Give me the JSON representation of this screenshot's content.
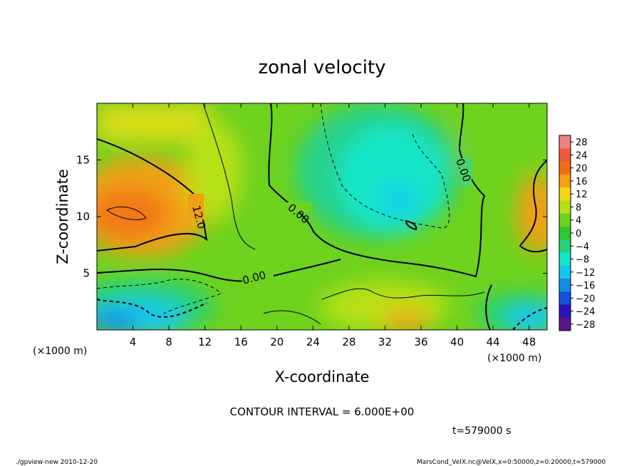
{
  "chart_data": {
    "type": "heatmap",
    "title": "zonal velocity",
    "xlabel": "X-coordinate",
    "ylabel": "Z-coordinate",
    "x_unit_label": "(×1000 m)",
    "z_unit_label": "(×1000 m)",
    "x_ticks": [
      4,
      8,
      12,
      16,
      20,
      24,
      28,
      32,
      36,
      40,
      44,
      48
    ],
    "y_ticks": [
      5,
      10,
      15
    ],
    "xlim": [
      0,
      50
    ],
    "ylim": [
      0,
      20
    ],
    "colorbar": {
      "levels": [
        28,
        24,
        20,
        16,
        12,
        8,
        4,
        0,
        -4,
        -8,
        -12,
        -16,
        -20,
        -24,
        -28
      ],
      "colors": [
        "#f08080",
        "#f05a3c",
        "#f06e14",
        "#f8a014",
        "#f8d814",
        "#b8e014",
        "#6ed21e",
        "#32c832",
        "#28d278",
        "#14e6c8",
        "#14c8f0",
        "#148ce6",
        "#1450dc",
        "#2814b4",
        "#5a148c"
      ]
    },
    "contour_labels": [
      "12.0",
      "0.00",
      "0.00",
      "0.00"
    ],
    "contour_interval_text": "CONTOUR INTERVAL = 6.000E+00",
    "time_text": "t=579000 s",
    "footer_left": "./gpview-new  2010-12-20",
    "footer_right": "MarsCond_VelX.nc@VelX,x=0:50000,z=0:20000,t=579000"
  }
}
